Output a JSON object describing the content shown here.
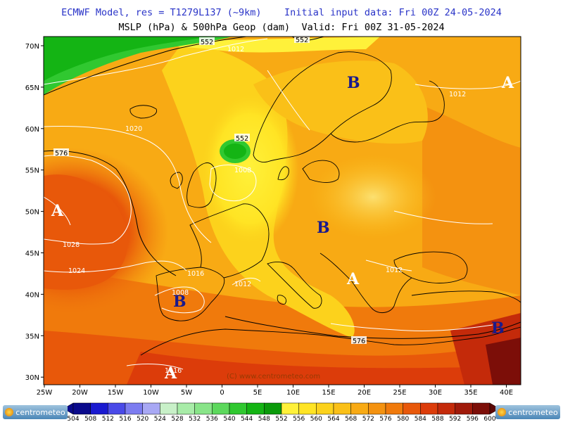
{
  "header": {
    "title_line1": "ECMWF Model, res = T1279L137 (~9km)    Initial input data: Fri 00Z 24-05-2024",
    "title_line2": "MSLP (hPa) & 500hPa Geop (dam)  Valid: Fri 00Z 31-05-2024"
  },
  "watermark": "(C) www.centrometeo.com",
  "logo_text": "centrometeo",
  "lat_labels": [
    "70N",
    "65N",
    "60N",
    "55N",
    "50N",
    "45N",
    "40N",
    "35N",
    "30N"
  ],
  "lon_labels": [
    "25W",
    "20W",
    "15W",
    "10W",
    "5W",
    "0",
    "5E",
    "10E",
    "15E",
    "20E",
    "25E",
    "30E",
    "35E",
    "40E"
  ],
  "isobar_labels": [
    {
      "text": "1012"
    },
    {
      "text": "1020"
    },
    {
      "text": "1008"
    },
    {
      "text": "1028"
    },
    {
      "text": "1024"
    },
    {
      "text": "1016"
    },
    {
      "text": "1008"
    },
    {
      "text": "1012"
    },
    {
      "text": "1012"
    },
    {
      "text": "1012"
    },
    {
      "text": "1016"
    }
  ],
  "geop_labels": [
    {
      "text": "552"
    },
    {
      "text": "552"
    },
    {
      "text": "552"
    },
    {
      "text": "576"
    },
    {
      "text": "576"
    }
  ],
  "pressure_centers": [
    {
      "letter": "A",
      "type": "high",
      "color": "#ffffff"
    },
    {
      "letter": "B",
      "type": "low",
      "color": "#1a1a8c"
    },
    {
      "letter": "B",
      "type": "low",
      "color": "#1a1a8c"
    },
    {
      "letter": "B",
      "type": "low",
      "color": "#1a1a8c"
    },
    {
      "letter": "A",
      "type": "high",
      "color": "#ffffff"
    },
    {
      "letter": "A",
      "type": "high",
      "color": "#ffffff"
    },
    {
      "letter": "A",
      "type": "high",
      "color": "#ffffff"
    },
    {
      "letter": "B",
      "type": "low",
      "color": "#1a1a8c"
    }
  ],
  "legend": {
    "values": [
      "504",
      "508",
      "512",
      "516",
      "520",
      "524",
      "528",
      "532",
      "536",
      "540",
      "544",
      "548",
      "552",
      "556",
      "560",
      "564",
      "568",
      "572",
      "576",
      "580",
      "584",
      "588",
      "592",
      "596",
      "600"
    ],
    "colors": [
      "#0a0a8c",
      "#1a1ad0",
      "#4a4ae8",
      "#7c7cf0",
      "#a8a8f4",
      "#c8f0c8",
      "#a8eca8",
      "#88e488",
      "#5cd85c",
      "#30c830",
      "#14b414",
      "#0a9a0a",
      "#fff13a",
      "#ffe424",
      "#fcd21c",
      "#fac018",
      "#f8aa14",
      "#f49210",
      "#f07a0c",
      "#e8580a",
      "#dc3c0a",
      "#c42a0a",
      "#a01a0a",
      "#7c0e08",
      "#5a0604"
    ]
  }
}
